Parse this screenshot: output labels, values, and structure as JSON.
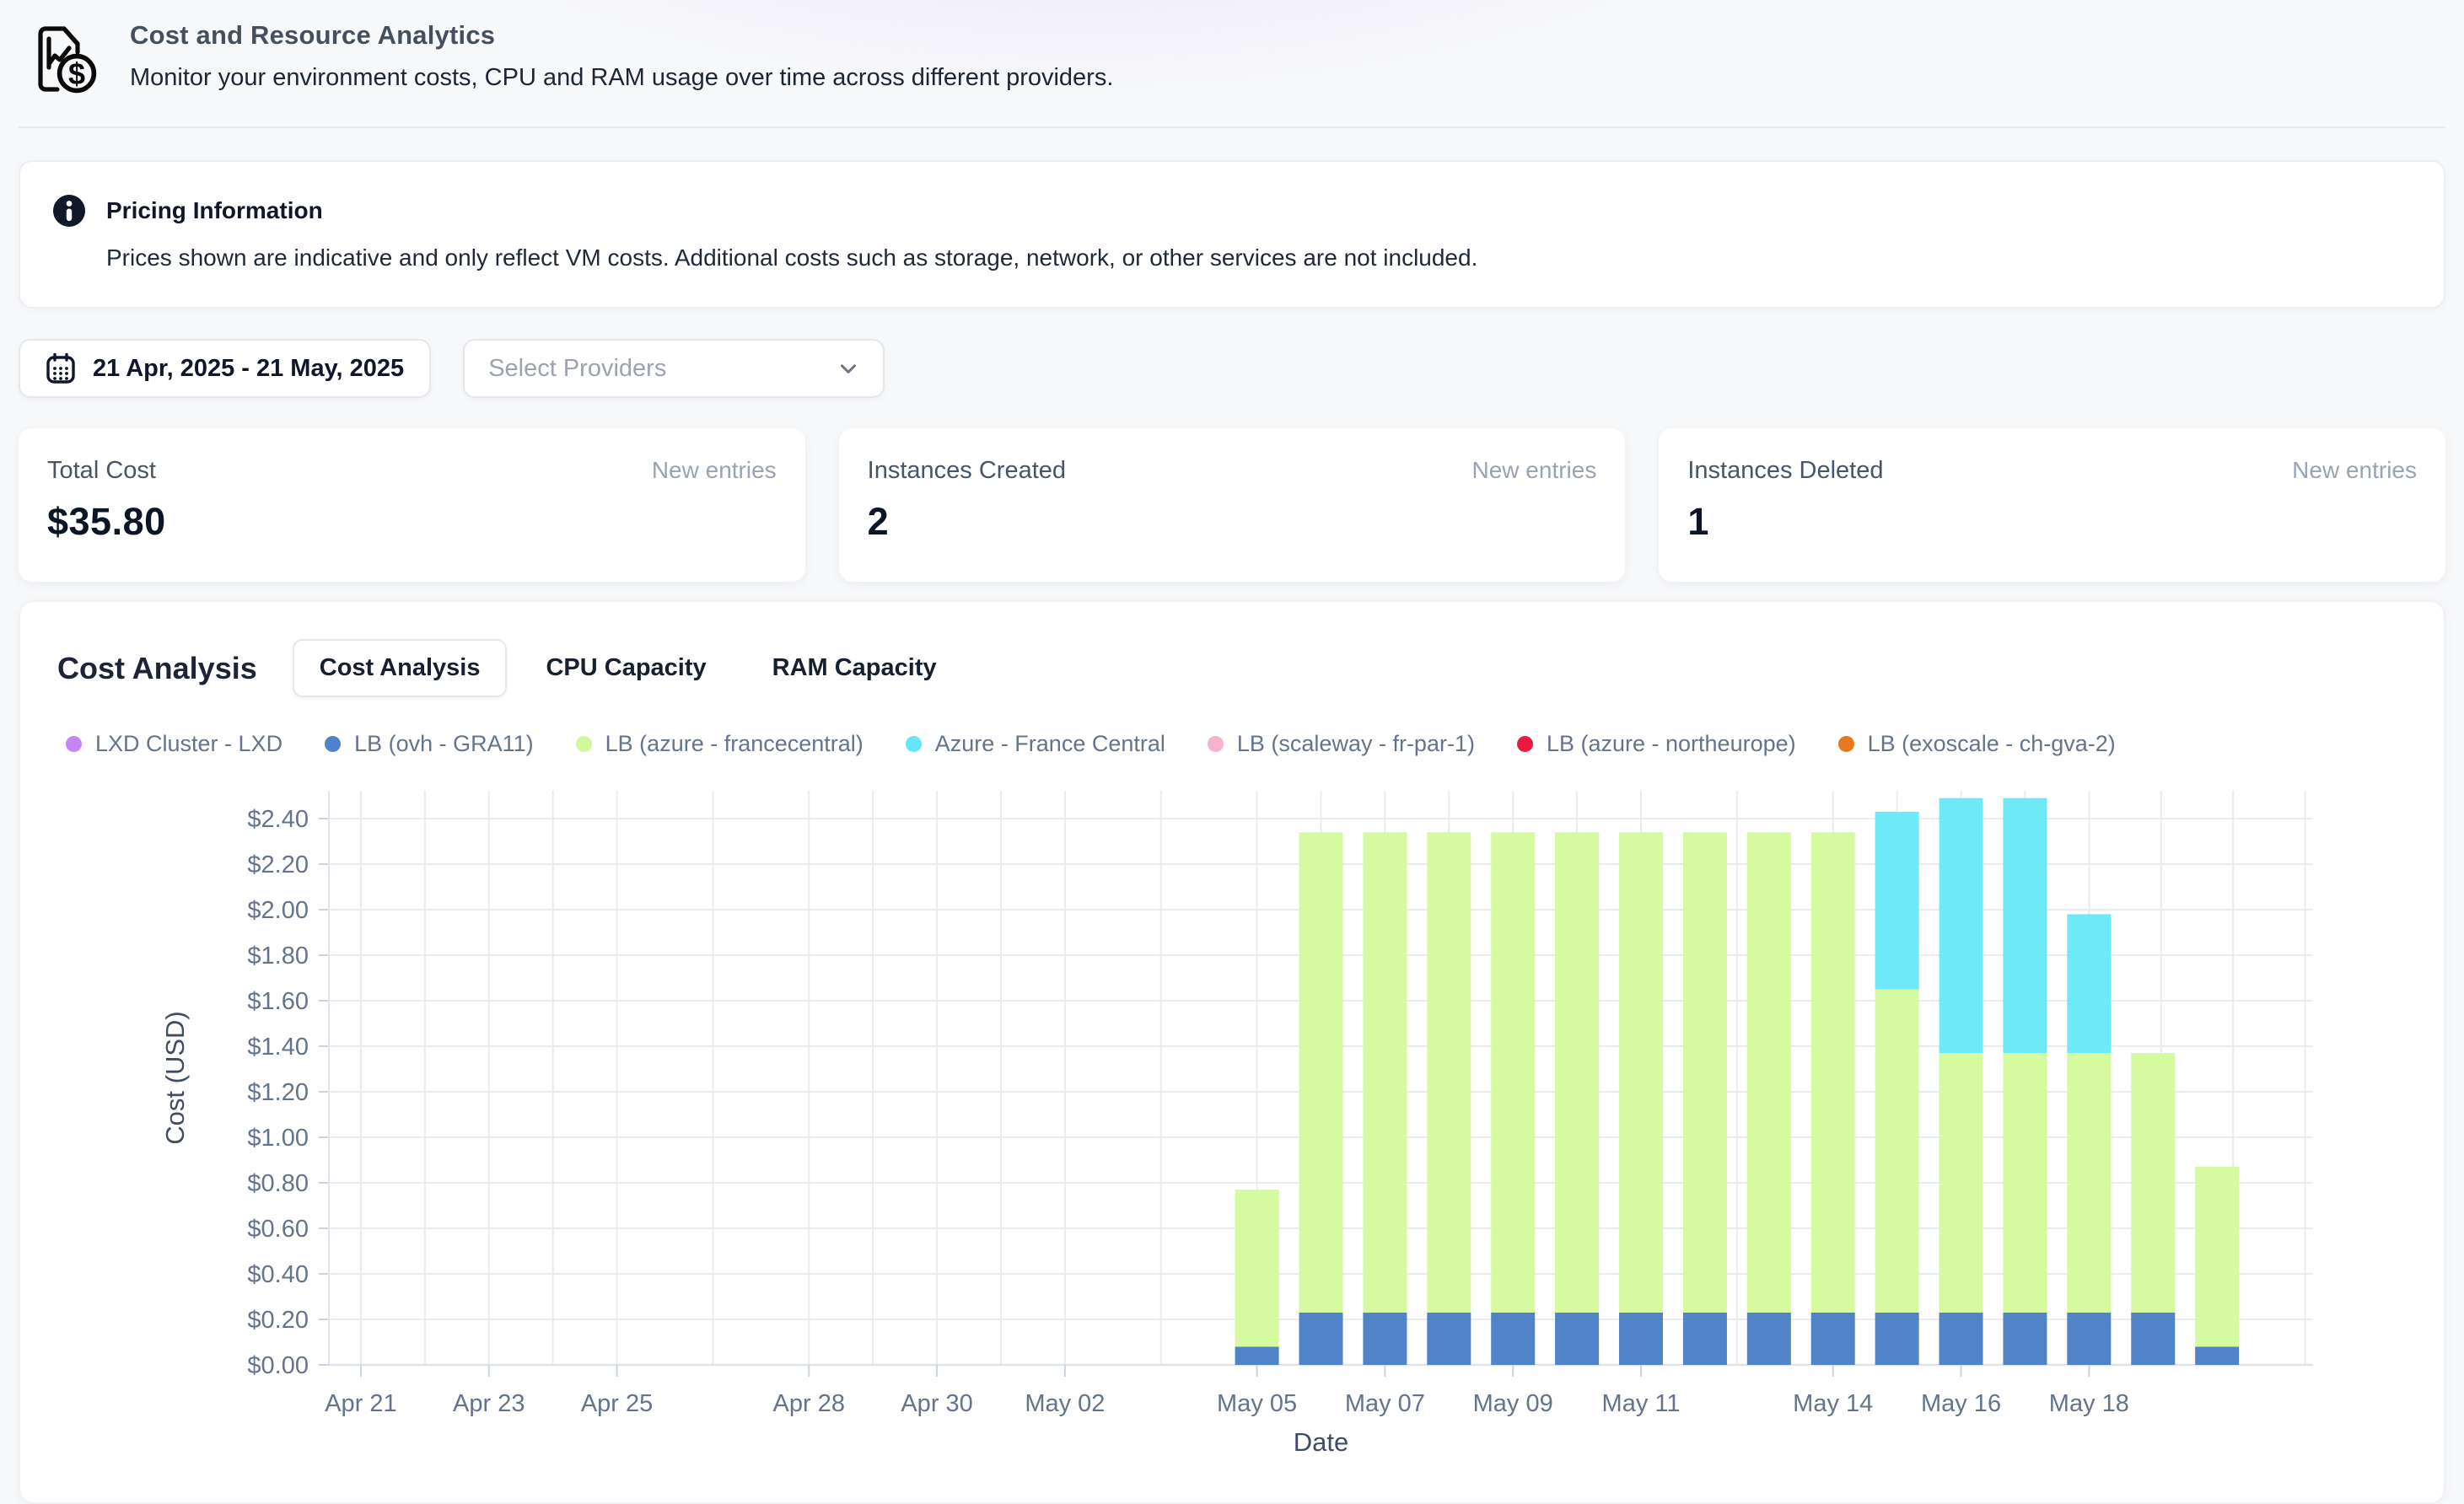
{
  "header": {
    "title": "Cost and Resource Analytics",
    "subtitle": "Monitor your environment costs, CPU and RAM usage over time across different providers."
  },
  "info_banner": {
    "title": "Pricing Information",
    "body": "Prices shown are indicative and only reflect VM costs. Additional costs such as storage, network, or other services are not included."
  },
  "controls": {
    "date_range": "21 Apr, 2025 - 21 May, 2025",
    "provider_placeholder": "Select Providers"
  },
  "stats": [
    {
      "label": "Total Cost",
      "badge": "New entries",
      "value": "$35.80"
    },
    {
      "label": "Instances Created",
      "badge": "New entries",
      "value": "2"
    },
    {
      "label": "Instances Deleted",
      "badge": "New entries",
      "value": "1"
    }
  ],
  "section": {
    "title": "Cost Analysis",
    "tabs": [
      {
        "label": "Cost Analysis",
        "active": true
      },
      {
        "label": "CPU Capacity",
        "active": false
      },
      {
        "label": "RAM Capacity",
        "active": false
      }
    ]
  },
  "legend": [
    {
      "label": "LXD Cluster - LXD",
      "color": "#c486f7"
    },
    {
      "label": "LB (ovh - GRA11)",
      "color": "#4d82cc"
    },
    {
      "label": "LB (azure - francecentral)",
      "color": "#d3f89c"
    },
    {
      "label": "Azure - France Central",
      "color": "#66e6f4"
    },
    {
      "label": "LB (scaleway - fr-par-1)",
      "color": "#f6b3cf"
    },
    {
      "label": "LB (azure - northeurope)",
      "color": "#e81a40"
    },
    {
      "label": "LB (exoscale - ch-gva-2)",
      "color": "#e87920"
    }
  ],
  "chart_data": {
    "type": "bar",
    "stacked": true,
    "title": "Cost Analysis",
    "xlabel": "Date",
    "ylabel": "Cost (USD)",
    "ylim": [
      0,
      2.4
    ],
    "ytick_step": 0.2,
    "ytick_prefix": "$",
    "grid": true,
    "legend_position": "top",
    "x_domain_days": 31,
    "x_domain_note": "Apr 21 2025 through May 21 2025, one slot per day",
    "xticks": [
      {
        "label": "Apr 21",
        "day": 0
      },
      {
        "label": "Apr 23",
        "day": 2
      },
      {
        "label": "Apr 25",
        "day": 4
      },
      {
        "label": "Apr 28",
        "day": 7
      },
      {
        "label": "Apr 30",
        "day": 9
      },
      {
        "label": "May 02",
        "day": 11
      },
      {
        "label": "May 05",
        "day": 14
      },
      {
        "label": "May 07",
        "day": 16
      },
      {
        "label": "May 09",
        "day": 18
      },
      {
        "label": "May 11",
        "day": 20
      },
      {
        "label": "May 14",
        "day": 23
      },
      {
        "label": "May 16",
        "day": 25
      },
      {
        "label": "May 18",
        "day": 27
      }
    ],
    "series": [
      {
        "name": "LB (ovh - GRA11)",
        "color": "#5083c7"
      },
      {
        "name": "LB (azure - francecentral)",
        "color": "#d6fa9f"
      },
      {
        "name": "Azure - France Central",
        "color": "#6ee9f8"
      }
    ],
    "bars": [
      {
        "date": "May 05",
        "day": 14,
        "values": [
          0.08,
          0.69,
          0
        ]
      },
      {
        "date": "May 06",
        "day": 15,
        "values": [
          0.23,
          2.11,
          0
        ]
      },
      {
        "date": "May 07",
        "day": 16,
        "values": [
          0.23,
          2.11,
          0
        ]
      },
      {
        "date": "May 08",
        "day": 17,
        "values": [
          0.23,
          2.11,
          0
        ]
      },
      {
        "date": "May 09",
        "day": 18,
        "values": [
          0.23,
          2.11,
          0
        ]
      },
      {
        "date": "May 10",
        "day": 19,
        "values": [
          0.23,
          2.11,
          0
        ]
      },
      {
        "date": "May 11",
        "day": 20,
        "values": [
          0.23,
          2.11,
          0
        ]
      },
      {
        "date": "May 12",
        "day": 21,
        "values": [
          0.23,
          2.11,
          0
        ]
      },
      {
        "date": "May 13",
        "day": 22,
        "values": [
          0.23,
          2.11,
          0
        ]
      },
      {
        "date": "May 14",
        "day": 23,
        "values": [
          0.23,
          2.11,
          0
        ]
      },
      {
        "date": "May 15",
        "day": 24,
        "values": [
          0.23,
          1.42,
          0.78
        ]
      },
      {
        "date": "May 16",
        "day": 25,
        "values": [
          0.23,
          1.14,
          1.12
        ]
      },
      {
        "date": "May 17",
        "day": 26,
        "values": [
          0.23,
          1.14,
          1.12
        ]
      },
      {
        "date": "May 18",
        "day": 27,
        "values": [
          0.23,
          1.14,
          0.61
        ]
      },
      {
        "date": "May 19",
        "day": 28,
        "values": [
          0.23,
          1.14,
          0
        ]
      },
      {
        "date": "May 20",
        "day": 29,
        "values": [
          0.08,
          0.79,
          0
        ]
      }
    ]
  }
}
